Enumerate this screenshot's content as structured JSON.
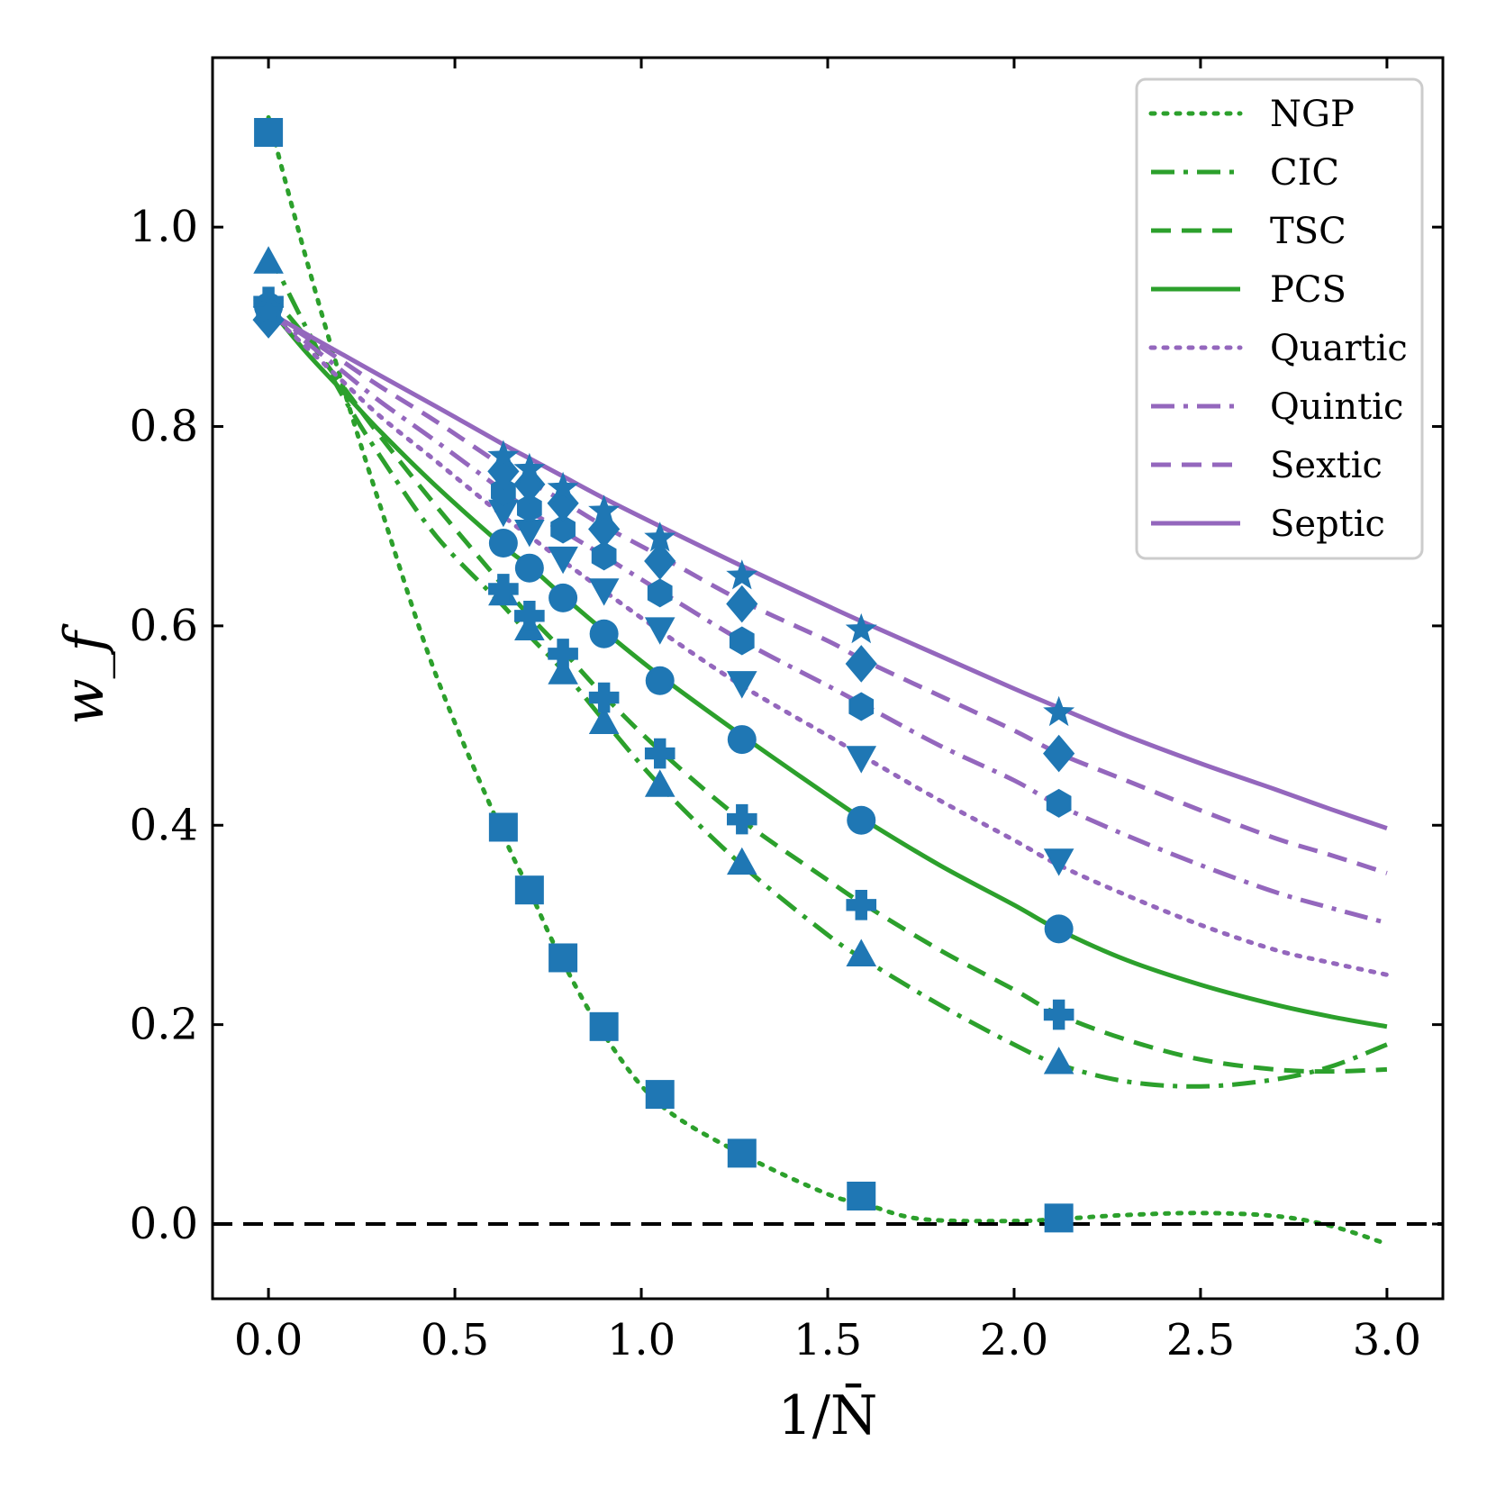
{
  "chart_data": {
    "type": "line",
    "title": "",
    "xlabel": "1/N̄",
    "ylabel": "w_f",
    "xlim": [
      -0.15,
      3.15
    ],
    "ylim": [
      -0.075,
      1.17
    ],
    "x_ticks": [
      0.0,
      0.5,
      1.0,
      1.5,
      2.0,
      2.5,
      3.0
    ],
    "x_tick_labels": [
      "0.0",
      "0.5",
      "1.0",
      "1.5",
      "2.0",
      "2.5",
      "3.0"
    ],
    "y_ticks": [
      0.0,
      0.2,
      0.4,
      0.6,
      0.8,
      1.0
    ],
    "y_tick_labels": [
      "0.0",
      "0.2",
      "0.4",
      "0.6",
      "0.8",
      "1.0"
    ],
    "grid": false,
    "legend_position": "top-right",
    "reference_line": {
      "y": 0.0,
      "style": "dashed",
      "color": "#000000"
    },
    "colors": {
      "green": "#2ca02c",
      "purple": "#9467bd",
      "marker": "#1f77b4"
    },
    "curves": [
      {
        "name": "NGP",
        "color": "#2ca02c",
        "style": "dotted",
        "x": [
          0.0,
          0.1,
          0.2,
          0.3,
          0.45,
          0.63,
          0.7,
          0.78,
          0.9,
          1.05,
          1.27,
          1.5,
          1.6,
          1.75,
          2.0,
          2.12,
          2.3,
          2.5,
          2.7,
          2.85,
          3.0
        ],
        "y": [
          1.11,
          0.97,
          0.84,
          0.72,
          0.55,
          0.39,
          0.335,
          0.27,
          0.19,
          0.12,
          0.07,
          0.03,
          0.02,
          0.005,
          0.003,
          0.005,
          0.009,
          0.011,
          0.008,
          -0.002,
          -0.02
        ]
      },
      {
        "name": "CIC",
        "color": "#2ca02c",
        "style": "dashdot",
        "x": [
          0.0,
          0.1,
          0.2,
          0.3,
          0.45,
          0.63,
          0.7,
          0.79,
          0.9,
          1.05,
          1.27,
          1.5,
          1.6,
          1.8,
          2.0,
          2.12,
          2.3,
          2.5,
          2.7,
          2.85,
          3.0
        ],
        "y": [
          0.975,
          0.9,
          0.83,
          0.77,
          0.69,
          0.62,
          0.59,
          0.555,
          0.505,
          0.44,
          0.36,
          0.29,
          0.265,
          0.22,
          0.18,
          0.16,
          0.143,
          0.138,
          0.145,
          0.158,
          0.18
        ]
      },
      {
        "name": "TSC",
        "color": "#2ca02c",
        "style": "dashed",
        "x": [
          0.0,
          0.1,
          0.2,
          0.3,
          0.45,
          0.63,
          0.7,
          0.79,
          0.9,
          1.05,
          1.27,
          1.5,
          1.6,
          1.8,
          2.0,
          2.12,
          2.3,
          2.5,
          2.7,
          2.85,
          3.0
        ],
        "y": [
          0.935,
          0.89,
          0.84,
          0.79,
          0.72,
          0.64,
          0.61,
          0.575,
          0.53,
          0.475,
          0.405,
          0.345,
          0.32,
          0.275,
          0.235,
          0.21,
          0.185,
          0.165,
          0.155,
          0.153,
          0.155
        ]
      },
      {
        "name": "PCS",
        "color": "#2ca02c",
        "style": "solid",
        "x": [
          0.0,
          0.1,
          0.2,
          0.3,
          0.45,
          0.63,
          0.7,
          0.79,
          0.9,
          1.05,
          1.27,
          1.5,
          1.6,
          1.8,
          2.0,
          2.12,
          2.3,
          2.5,
          2.7,
          2.85,
          3.0
        ],
        "y": [
          0.92,
          0.875,
          0.835,
          0.795,
          0.74,
          0.68,
          0.66,
          0.63,
          0.595,
          0.55,
          0.49,
          0.43,
          0.405,
          0.36,
          0.32,
          0.295,
          0.265,
          0.24,
          0.22,
          0.208,
          0.198
        ]
      },
      {
        "name": "Quartic",
        "color": "#9467bd",
        "style": "dotted",
        "x": [
          0.0,
          0.1,
          0.2,
          0.3,
          0.45,
          0.63,
          0.7,
          0.79,
          0.9,
          1.05,
          1.27,
          1.5,
          1.6,
          1.8,
          2.0,
          2.12,
          2.3,
          2.5,
          2.7,
          2.85,
          3.0
        ],
        "y": [
          0.915,
          0.88,
          0.845,
          0.81,
          0.765,
          0.71,
          0.69,
          0.665,
          0.635,
          0.595,
          0.54,
          0.49,
          0.468,
          0.425,
          0.385,
          0.36,
          0.33,
          0.3,
          0.275,
          0.262,
          0.25
        ]
      },
      {
        "name": "Quintic",
        "color": "#9467bd",
        "style": "dashdot",
        "x": [
          0.0,
          0.1,
          0.2,
          0.3,
          0.45,
          0.63,
          0.7,
          0.79,
          0.9,
          1.05,
          1.27,
          1.5,
          1.6,
          1.8,
          2.0,
          2.12,
          2.3,
          2.5,
          2.7,
          2.85,
          3.0
        ],
        "y": [
          0.915,
          0.885,
          0.855,
          0.825,
          0.785,
          0.735,
          0.715,
          0.695,
          0.67,
          0.635,
          0.585,
          0.54,
          0.52,
          0.48,
          0.445,
          0.42,
          0.39,
          0.36,
          0.333,
          0.317,
          0.302
        ]
      },
      {
        "name": "Sextic",
        "color": "#9467bd",
        "style": "dashed",
        "x": [
          0.0,
          0.1,
          0.2,
          0.3,
          0.45,
          0.63,
          0.7,
          0.79,
          0.9,
          1.05,
          1.27,
          1.5,
          1.6,
          1.8,
          2.0,
          2.12,
          2.3,
          2.5,
          2.7,
          2.85,
          3.0
        ],
        "y": [
          0.915,
          0.89,
          0.865,
          0.84,
          0.805,
          0.76,
          0.745,
          0.725,
          0.7,
          0.67,
          0.625,
          0.585,
          0.565,
          0.53,
          0.495,
          0.472,
          0.445,
          0.415,
          0.387,
          0.37,
          0.352
        ]
      },
      {
        "name": "Septic",
        "color": "#9467bd",
        "style": "solid",
        "x": [
          0.0,
          0.1,
          0.2,
          0.3,
          0.45,
          0.63,
          0.7,
          0.79,
          0.9,
          1.05,
          1.27,
          1.5,
          1.6,
          1.8,
          2.0,
          2.12,
          2.3,
          2.5,
          2.7,
          2.85,
          3.0
        ],
        "y": [
          0.915,
          0.893,
          0.872,
          0.851,
          0.82,
          0.782,
          0.768,
          0.75,
          0.728,
          0.7,
          0.66,
          0.62,
          0.603,
          0.57,
          0.537,
          0.518,
          0.49,
          0.462,
          0.436,
          0.416,
          0.397
        ]
      }
    ],
    "marker_series": [
      {
        "name": "NGP",
        "marker": "square",
        "x": [
          0.0,
          0.63,
          0.7,
          0.79,
          0.9,
          1.05,
          1.27,
          1.59,
          2.12
        ],
        "y": [
          1.095,
          0.398,
          0.335,
          0.267,
          0.198,
          0.13,
          0.071,
          0.028,
          0.006
        ]
      },
      {
        "name": "CIC",
        "marker": "triangle-up",
        "x": [
          0.0,
          0.63,
          0.7,
          0.79,
          0.9,
          1.05,
          1.27,
          1.59,
          2.12
        ],
        "y": [
          0.965,
          0.632,
          0.597,
          0.553,
          0.503,
          0.44,
          0.362,
          0.27,
          0.162
        ]
      },
      {
        "name": "TSC",
        "marker": "plus",
        "x": [
          0.0,
          0.63,
          0.7,
          0.79,
          0.9,
          1.05,
          1.27,
          1.59,
          2.12
        ],
        "y": [
          0.925,
          0.637,
          0.61,
          0.572,
          0.528,
          0.472,
          0.406,
          0.32,
          0.21
        ]
      },
      {
        "name": "PCS",
        "marker": "circle",
        "x": [
          0.0,
          0.63,
          0.7,
          0.79,
          0.9,
          1.05,
          1.27,
          1.59,
          2.12
        ],
        "y": [
          0.92,
          0.683,
          0.658,
          0.628,
          0.592,
          0.545,
          0.486,
          0.405,
          0.296
        ]
      },
      {
        "name": "Quartic",
        "marker": "triangle-down",
        "x": [
          0.0,
          0.63,
          0.7,
          0.79,
          0.9,
          1.05,
          1.27,
          1.59,
          2.12
        ],
        "y": [
          0.915,
          0.715,
          0.695,
          0.668,
          0.636,
          0.597,
          0.543,
          0.468,
          0.365
        ]
      },
      {
        "name": "Quintic",
        "marker": "hexagon",
        "x": [
          0.0,
          0.63,
          0.7,
          0.79,
          0.9,
          1.05,
          1.27,
          1.59,
          2.12
        ],
        "y": [
          0.915,
          0.735,
          0.718,
          0.697,
          0.67,
          0.633,
          0.585,
          0.519,
          0.422
        ]
      },
      {
        "name": "Sextic",
        "marker": "diamond",
        "x": [
          0.0,
          0.63,
          0.7,
          0.79,
          0.9,
          1.05,
          1.27,
          1.59,
          2.12
        ],
        "y": [
          0.907,
          0.755,
          0.742,
          0.723,
          0.697,
          0.665,
          0.622,
          0.562,
          0.472
        ]
      },
      {
        "name": "Septic",
        "marker": "star",
        "x": [
          0.0,
          0.63,
          0.7,
          0.79,
          0.9,
          1.05,
          1.27,
          1.59,
          2.12
        ],
        "y": [
          0.915,
          0.77,
          0.757,
          0.738,
          0.715,
          0.688,
          0.65,
          0.596,
          0.513
        ]
      }
    ],
    "legend": [
      "NGP",
      "CIC",
      "TSC",
      "PCS",
      "Quartic",
      "Quintic",
      "Sextic",
      "Septic"
    ]
  }
}
